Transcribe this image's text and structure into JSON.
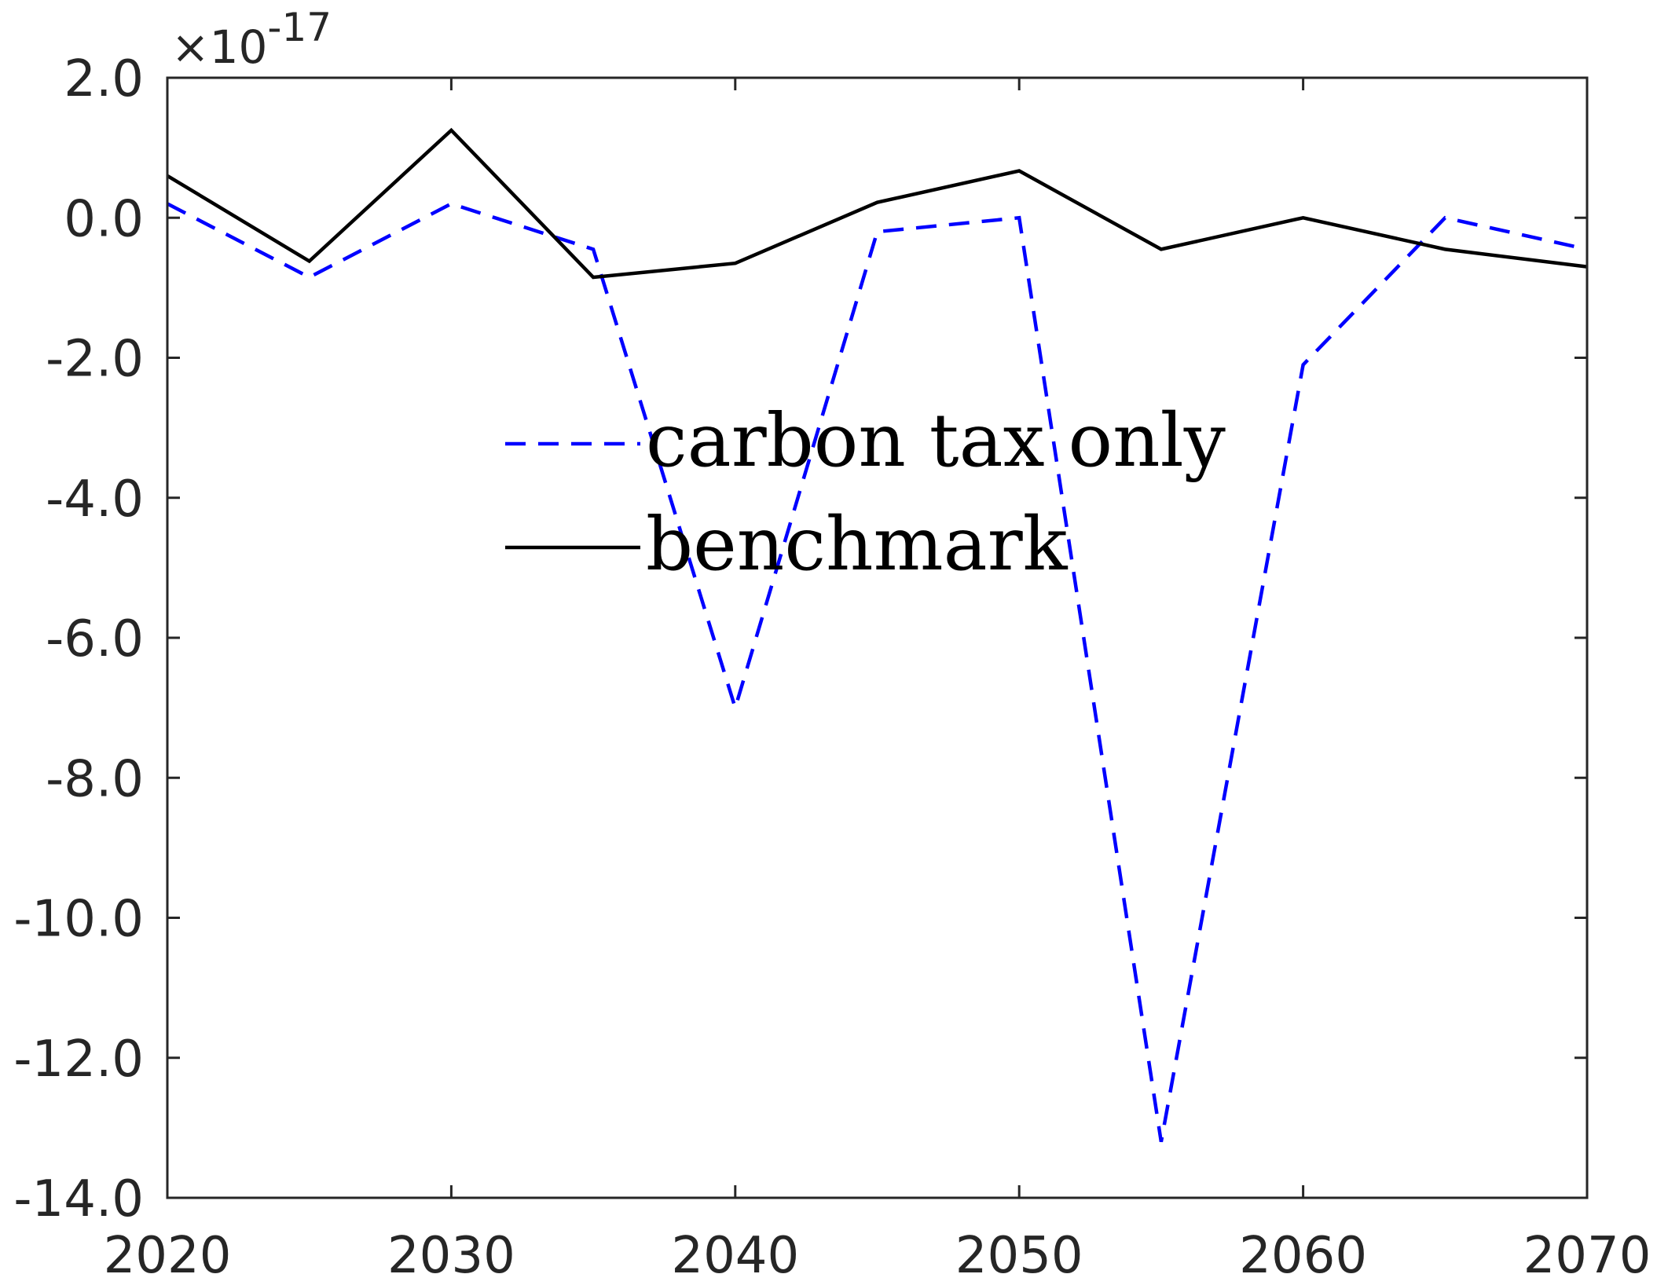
{
  "chart_data": {
    "type": "line",
    "title": "",
    "xlabel": "",
    "ylabel": "",
    "x": [
      2020,
      2025,
      2030,
      2035,
      2040,
      2045,
      2050,
      2055,
      2060,
      2065,
      2070
    ],
    "xlim": [
      2020,
      2070
    ],
    "ylim": [
      -14.0,
      2.0
    ],
    "y_scale_label": {
      "base": "×10",
      "exponent": "-17"
    },
    "x_ticks": [
      "2020",
      "2030",
      "2040",
      "2050",
      "2060",
      "2070"
    ],
    "y_ticks": [
      "2.0",
      "0.0",
      "-2.0",
      "-4.0",
      "-6.0",
      "-8.0",
      "-10.0",
      "-12.0",
      "-14.0"
    ],
    "grid": false,
    "legend_position": "center",
    "series": [
      {
        "name": "carbon tax only",
        "color": "#0000ff",
        "style": "dashed",
        "values": [
          0.2,
          -0.85,
          0.2,
          -0.45,
          -7.0,
          -0.2,
          0.0,
          -13.2,
          -2.1,
          0.0,
          -0.45
        ]
      },
      {
        "name": "benchmark",
        "color": "#000000",
        "style": "solid",
        "values": [
          0.6,
          -0.62,
          1.25,
          -0.85,
          -0.65,
          0.22,
          0.67,
          -0.45,
          0.0,
          -0.45,
          -0.7
        ]
      }
    ]
  }
}
